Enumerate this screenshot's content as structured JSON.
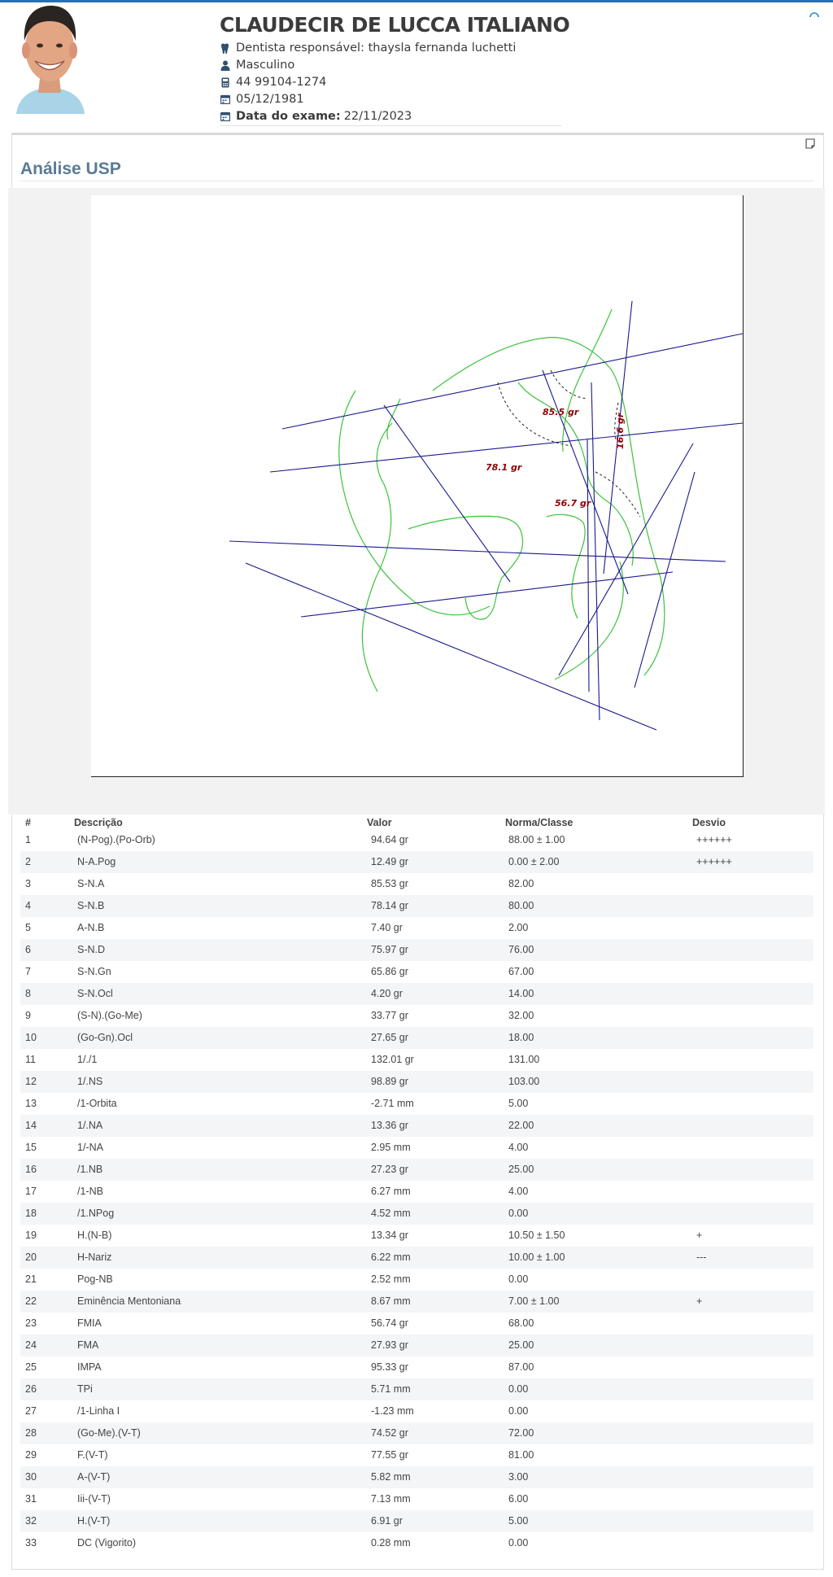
{
  "patient": {
    "name": "CLAUDECIR DE LUCCA ITALIANO",
    "dentist": "Dentista responsável: thaysla fernanda luchetti",
    "gender": "Masculino",
    "phone": "44 99104-1274",
    "birthdate": "05/12/1981",
    "exam_label": "Data do exame:",
    "exam_date": "22/11/2023"
  },
  "panel": {
    "title": "Análise USP"
  },
  "icons": {
    "dentist": "tooth-icon",
    "gender": "user-icon",
    "phone": "phone-icon",
    "birthdate": "calendar-icon",
    "exam": "calendar-icon",
    "corner": "note-icon",
    "loading": "spinner-icon"
  },
  "tracing": {
    "angle_labels": [
      "85.5 gr",
      "78.1 gr",
      "56.7 gr",
      "16.6 gr"
    ],
    "colors": {
      "lines": "#1a1a8c",
      "contours": "#3cc23c",
      "labels": "#8b0000"
    }
  },
  "table": {
    "headers": [
      "#",
      "Descrição",
      "Valor",
      "Norma/Classe",
      "Desvio"
    ],
    "rows": [
      [
        "1",
        "(N-Pog).(Po-Orb)",
        "94.64 gr",
        "88.00 ± 1.00",
        "++++++"
      ],
      [
        "2",
        "N-A.Pog",
        "12.49 gr",
        "0.00 ± 2.00",
        "++++++"
      ],
      [
        "3",
        "S-N.A",
        "85.53 gr",
        "82.00",
        ""
      ],
      [
        "4",
        "S-N.B",
        "78.14 gr",
        "80.00",
        ""
      ],
      [
        "5",
        "A-N.B",
        "7.40 gr",
        "2.00",
        ""
      ],
      [
        "6",
        "S-N.D",
        "75.97 gr",
        "76.00",
        ""
      ],
      [
        "7",
        "S-N.Gn",
        "65.86 gr",
        "67.00",
        ""
      ],
      [
        "8",
        "S-N.Ocl",
        "4.20 gr",
        "14.00",
        ""
      ],
      [
        "9",
        "(S-N).(Go-Me)",
        "33.77 gr",
        "32.00",
        ""
      ],
      [
        "10",
        "(Go-Gn).Ocl",
        "27.65 gr",
        "18.00",
        ""
      ],
      [
        "11",
        "1/./1",
        "132.01 gr",
        "131.00",
        ""
      ],
      [
        "12",
        "1/.NS",
        "98.89 gr",
        "103.00",
        ""
      ],
      [
        "13",
        "/1-Orbita",
        "-2.71 mm",
        "5.00",
        ""
      ],
      [
        "14",
        "1/.NA",
        "13.36 gr",
        "22.00",
        ""
      ],
      [
        "15",
        "1/-NA",
        "2.95 mm",
        "4.00",
        ""
      ],
      [
        "16",
        "/1.NB",
        "27.23 gr",
        "25.00",
        ""
      ],
      [
        "17",
        "/1-NB",
        "6.27 mm",
        "4.00",
        ""
      ],
      [
        "18",
        "/1.NPog",
        "4.52 mm",
        "0.00",
        ""
      ],
      [
        "19",
        "H.(N-B)",
        "13.34 gr",
        "10.50 ± 1.50",
        "+"
      ],
      [
        "20",
        "H-Nariz",
        "6.22 mm",
        "10.00 ± 1.00",
        "---"
      ],
      [
        "21",
        "Pog-NB",
        "2.52 mm",
        "0.00",
        ""
      ],
      [
        "22",
        "Eminência Mentoniana",
        "8.67 mm",
        "7.00 ± 1.00",
        "+"
      ],
      [
        "23",
        "FMIA",
        "56.74 gr",
        "68.00",
        ""
      ],
      [
        "24",
        "FMA",
        "27.93 gr",
        "25.00",
        ""
      ],
      [
        "25",
        "IMPA",
        "95.33 gr",
        "87.00",
        ""
      ],
      [
        "26",
        "TPi",
        "5.71 mm",
        "0.00",
        ""
      ],
      [
        "27",
        "/1-Linha I",
        "-1.23 mm",
        "0.00",
        ""
      ],
      [
        "28",
        "(Go-Me).(V-T)",
        "74.52 gr",
        "72.00",
        ""
      ],
      [
        "29",
        "F.(V-T)",
        "77.55 gr",
        "81.00",
        ""
      ],
      [
        "30",
        "A-(V-T)",
        "5.82 mm",
        "3.00",
        ""
      ],
      [
        "31",
        "Iii-(V-T)",
        "7.13 mm",
        "6.00",
        ""
      ],
      [
        "32",
        "H.(V-T)",
        "6.91 gr",
        "5.00",
        ""
      ],
      [
        "33",
        "DC (Vigorito)",
        "0.28 mm",
        "0.00",
        ""
      ]
    ]
  }
}
